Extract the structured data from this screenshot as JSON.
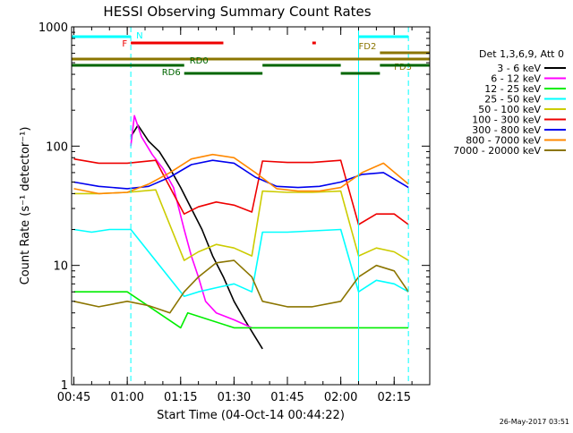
{
  "chart_data": {
    "type": "line",
    "title": "HESSI Observing Summary Count Rates",
    "xlabel": "Start Time (04-Oct-14 00:44:22)",
    "ylabel": "Count Rate (s⁻¹ detector⁻¹)",
    "yscale": "log",
    "ylim": [
      1,
      1000
    ],
    "xlim": [
      "00:44:22",
      "02:25:00"
    ],
    "x_ticks": [
      "00:45",
      "01:00",
      "01:15",
      "01:30",
      "01:45",
      "02:00",
      "02:15"
    ],
    "y_ticks": [
      "1",
      "10",
      "100",
      "1000"
    ],
    "footer": "26-May-2017 03:51",
    "legend": {
      "placement": "right",
      "header": "Det 1,3,6,9, Att 0",
      "entries": [
        {
          "label": "3 - 6 keV",
          "color": "#000000"
        },
        {
          "label": "6 - 12 keV",
          "color": "#ff00ff"
        },
        {
          "label": "12 - 25 keV",
          "color": "#00ee00"
        },
        {
          "label": "25 - 50 keV",
          "color": "#00ffff"
        },
        {
          "label": "50 - 100 keV",
          "color": "#cccc00"
        },
        {
          "label": "100 - 300 keV",
          "color": "#ee0000"
        },
        {
          "label": "300 - 800 keV",
          "color": "#0000ee"
        },
        {
          "label": "800 - 7000 keV",
          "color": "#ff8800"
        },
        {
          "label": "7000 - 20000 keV",
          "color": "#8b7500"
        }
      ]
    },
    "flag_bars": [
      {
        "label": "N",
        "color": "#00ffff",
        "segments": [
          [
            "00:44:22",
            "01:01"
          ],
          [
            "02:05",
            "02:19"
          ]
        ]
      },
      {
        "label": "F",
        "color": "#ee0000",
        "segments": [
          [
            "01:01",
            "01:27"
          ],
          [
            "01:52",
            "01:53"
          ]
        ]
      },
      {
        "label": "FD2",
        "color": "#8b7500",
        "segments": [
          [
            "02:11",
            "02:25"
          ]
        ]
      },
      {
        "label": "FD3",
        "color": "#8b7500",
        "segments": [
          [
            "00:44:22",
            "02:25"
          ]
        ]
      },
      {
        "label": "RD0",
        "color": "#006600",
        "segments": [
          [
            "00:44:22",
            "01:16"
          ],
          [
            "01:38",
            "02:00"
          ],
          [
            "02:11",
            "02:25"
          ]
        ]
      },
      {
        "label": "RD6",
        "color": "#006600",
        "segments": [
          [
            "01:16",
            "01:38"
          ],
          [
            "02:00",
            "02:11"
          ]
        ]
      }
    ],
    "vertical_markers": [
      {
        "x": "01:01",
        "color": "#00ffff",
        "style": "dashed"
      },
      {
        "x": "02:19",
        "color": "#00ffff",
        "style": "dashed"
      },
      {
        "x": "02:05",
        "color": "#00ffff",
        "style": "solid"
      }
    ],
    "series": [
      {
        "name": "3 - 6 keV",
        "color": "#000000",
        "x": [
          "01:01",
          "01:03",
          "01:06",
          "01:09",
          "01:12",
          "01:15",
          "01:18",
          "01:21",
          "01:24",
          "01:27",
          "01:30",
          "01:33",
          "01:36",
          "01:38"
        ],
        "values": [
          120,
          150,
          110,
          90,
          65,
          45,
          30,
          20,
          12,
          8,
          5,
          3.5,
          2.5,
          2
        ]
      },
      {
        "name": "6 - 12 keV",
        "color": "#ff00ff",
        "x": [
          "01:01",
          "01:02",
          "01:04",
          "01:07",
          "01:10",
          "01:13",
          "01:16",
          "01:18",
          "01:20",
          "01:22",
          "01:25",
          "01:30",
          "01:35"
        ],
        "values": [
          100,
          180,
          120,
          85,
          65,
          45,
          20,
          12,
          8,
          5,
          4,
          3.5,
          3
        ]
      },
      {
        "name": "12 - 25 keV",
        "color": "#00ee00",
        "x": [
          "00:45",
          "01:00",
          "01:15",
          "01:17",
          "01:30",
          "01:38",
          "01:45",
          "02:00",
          "02:15",
          "02:19"
        ],
        "values": [
          6,
          6,
          3,
          4,
          3,
          3,
          3,
          3,
          3,
          3
        ]
      },
      {
        "name": "25 - 50 keV",
        "color": "#00ffff",
        "x": [
          "00:45",
          "00:50",
          "00:55",
          "01:01",
          "01:16",
          "01:20",
          "01:25",
          "01:30",
          "01:35",
          "01:38",
          "01:45",
          "02:00",
          "02:05",
          "02:10",
          "02:15",
          "02:19"
        ],
        "values": [
          20,
          19,
          20,
          20,
          5.5,
          6,
          6.5,
          7,
          6,
          19,
          19,
          20,
          6,
          7.5,
          7,
          6
        ]
      },
      {
        "name": "50 - 100 keV",
        "color": "#cccc00",
        "x": [
          "00:45",
          "00:52",
          "01:00",
          "01:08",
          "01:16",
          "01:20",
          "01:25",
          "01:30",
          "01:35",
          "01:38",
          "01:45",
          "01:52",
          "02:00",
          "02:05",
          "02:10",
          "02:15",
          "02:19"
        ],
        "values": [
          40,
          40,
          41,
          43,
          11,
          13,
          15,
          14,
          12,
          42,
          41,
          41,
          42,
          12,
          14,
          13,
          11
        ]
      },
      {
        "name": "100 - 300 keV",
        "color": "#ee0000",
        "x": [
          "00:45",
          "00:52",
          "01:00",
          "01:08",
          "01:16",
          "01:20",
          "01:25",
          "01:30",
          "01:35",
          "01:38",
          "01:45",
          "01:52",
          "02:00",
          "02:05",
          "02:10",
          "02:15",
          "02:19"
        ],
        "values": [
          78,
          72,
          72,
          76,
          27,
          31,
          34,
          32,
          28,
          75,
          73,
          73,
          76,
          22,
          27,
          27,
          22
        ]
      },
      {
        "name": "300 - 800 keV",
        "color": "#0000ee",
        "x": [
          "00:45",
          "00:52",
          "01:00",
          "01:06",
          "01:12",
          "01:18",
          "01:24",
          "01:30",
          "01:36",
          "01:42",
          "01:48",
          "01:54",
          "02:00",
          "02:06",
          "02:12",
          "02:19"
        ],
        "values": [
          50,
          46,
          44,
          46,
          55,
          70,
          76,
          72,
          55,
          46,
          45,
          46,
          50,
          58,
          60,
          45
        ]
      },
      {
        "name": "800 - 7000 keV",
        "color": "#ff8800",
        "x": [
          "00:45",
          "00:52",
          "01:00",
          "01:06",
          "01:12",
          "01:18",
          "01:24",
          "01:30",
          "01:36",
          "01:42",
          "01:48",
          "01:54",
          "02:00",
          "02:06",
          "02:12",
          "02:19"
        ],
        "values": [
          44,
          40,
          41,
          48,
          60,
          78,
          85,
          80,
          60,
          44,
          42,
          42,
          45,
          60,
          72,
          48
        ]
      },
      {
        "name": "7000 - 20000 keV",
        "color": "#8b7500",
        "x": [
          "00:45",
          "00:52",
          "01:00",
          "01:06",
          "01:12",
          "01:16",
          "01:20",
          "01:25",
          "01:30",
          "01:35",
          "01:38",
          "01:45",
          "01:52",
          "02:00",
          "02:05",
          "02:10",
          "02:15",
          "02:19"
        ],
        "values": [
          5,
          4.5,
          5,
          4.6,
          4,
          6,
          8,
          10.5,
          11,
          8,
          5,
          4.5,
          4.5,
          5,
          8,
          10,
          9,
          6
        ]
      }
    ]
  }
}
